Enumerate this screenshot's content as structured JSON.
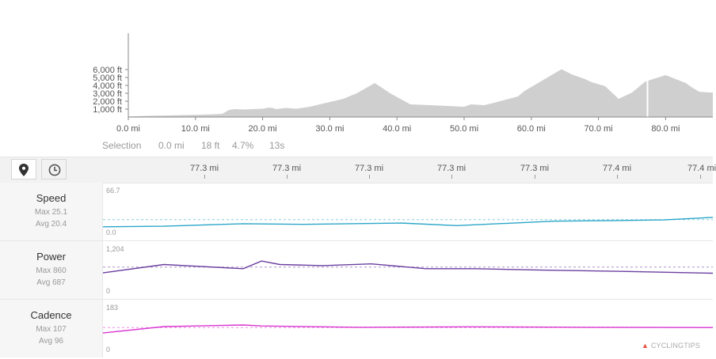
{
  "elevation": {
    "y_ticks": [
      "6,000 ft",
      "5,000 ft",
      "4,000 ft",
      "3,000 ft",
      "2,000 ft",
      "1,000 ft"
    ],
    "x_ticks": [
      "0.0 mi",
      "10.0 mi",
      "20.0 mi",
      "30.0 mi",
      "40.0 mi",
      "50.0 mi",
      "60.0 mi",
      "70.0 mi",
      "80.0 mi"
    ],
    "profile": [
      [
        0,
        60
      ],
      [
        3,
        150
      ],
      [
        6,
        200
      ],
      [
        9,
        260
      ],
      [
        12,
        330
      ],
      [
        14,
        400
      ],
      [
        15,
        900
      ],
      [
        16,
        1000
      ],
      [
        17,
        950
      ],
      [
        20,
        1050
      ],
      [
        21,
        1200
      ],
      [
        21.7,
        1100
      ],
      [
        22,
        1000
      ],
      [
        23.5,
        1150
      ],
      [
        25,
        1050
      ],
      [
        27,
        1300
      ],
      [
        29,
        1700
      ],
      [
        32,
        2300
      ],
      [
        34,
        3000
      ],
      [
        36.7,
        4300
      ],
      [
        39,
        3000
      ],
      [
        42,
        1600
      ],
      [
        45,
        1500
      ],
      [
        50,
        1300
      ],
      [
        51,
        1600
      ],
      [
        53,
        1500
      ],
      [
        54,
        1700
      ],
      [
        58,
        2600
      ],
      [
        59,
        3300
      ],
      [
        61,
        4300
      ],
      [
        62,
        4800
      ],
      [
        64.5,
        6050
      ],
      [
        66,
        5400
      ],
      [
        68,
        4800
      ],
      [
        69,
        4400
      ],
      [
        71,
        3900
      ],
      [
        73,
        2300
      ],
      [
        75,
        3100
      ],
      [
        77,
        4500
      ],
      [
        80,
        5300
      ],
      [
        83,
        4300
      ],
      [
        84,
        3700
      ],
      [
        85,
        3200
      ],
      [
        86.5,
        3100
      ]
    ],
    "selection_at_mi": 77.3,
    "color": "#cfcfcf"
  },
  "selection": {
    "label": "Selection",
    "distance": "0.0 mi",
    "elevation": "18 ft",
    "grade": "4.7%",
    "duration": "13s"
  },
  "toolbar": {
    "map_icon": "map-pin-icon",
    "time_icon": "clock-icon"
  },
  "timeline": {
    "ticks": [
      "77.3 mi",
      "77.3 mi",
      "77.3 mi",
      "77.3 mi",
      "77.3 mi",
      "77.4 mi",
      "77.4 mi"
    ]
  },
  "metrics": [
    {
      "name": "Speed",
      "max": "Max 25.1",
      "avg": "Avg 20.4",
      "ymax_label": "66.7",
      "ymin_label": "0.0",
      "ymax": 66.7,
      "avg_value": 20.4,
      "color": "#2aa6c8",
      "values": [
        [
          0,
          9
        ],
        [
          0.1,
          10
        ],
        [
          0.23,
          14
        ],
        [
          0.33,
          13
        ],
        [
          0.49,
          15
        ],
        [
          0.58,
          11
        ],
        [
          0.74,
          18
        ],
        [
          0.84,
          19
        ],
        [
          0.92,
          20
        ],
        [
          1,
          24
        ]
      ]
    },
    {
      "name": "Power",
      "max": "Max 860",
      "avg": "Avg 687",
      "ymax_label": "1,204",
      "ymin_label": "0",
      "ymax": 1204,
      "avg_value": 687,
      "color": "#6b3fa0",
      "values": [
        [
          0,
          520
        ],
        [
          0.1,
          760
        ],
        [
          0.23,
          640
        ],
        [
          0.26,
          860
        ],
        [
          0.29,
          760
        ],
        [
          0.36,
          730
        ],
        [
          0.44,
          780
        ],
        [
          0.53,
          640
        ],
        [
          0.61,
          640
        ],
        [
          0.72,
          600
        ],
        [
          0.86,
          560
        ],
        [
          1,
          510
        ]
      ]
    },
    {
      "name": "Cadence",
      "max": "Max 107",
      "avg": "Avg 96",
      "ymax_label": "183",
      "ymin_label": "0",
      "ymax": 183,
      "avg_value": 96,
      "color": "#d936d0",
      "values": [
        [
          0,
          72
        ],
        [
          0.1,
          100
        ],
        [
          0.23,
          107
        ],
        [
          0.26,
          103
        ],
        [
          0.42,
          97
        ],
        [
          0.6,
          99
        ],
        [
          0.8,
          97
        ],
        [
          1,
          96
        ]
      ]
    }
  ],
  "brand": {
    "text": "CYCLINGTIPS",
    "logo": "mountain-logo-icon"
  }
}
